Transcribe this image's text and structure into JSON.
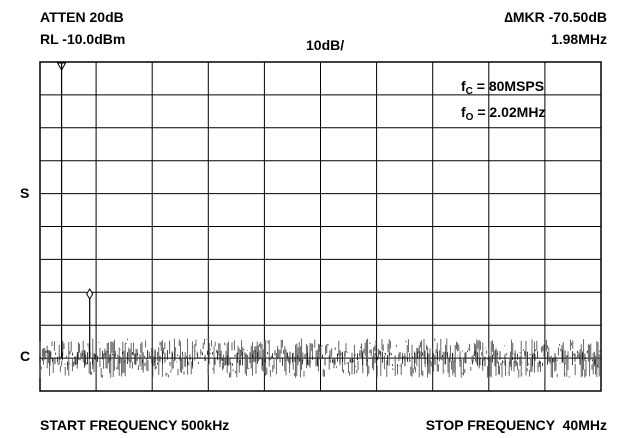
{
  "header": {
    "atten": "ATTEN 20dB",
    "rl": "RL -10.0dBm",
    "scale": "10dB/",
    "marker_prefix": "∆MKR",
    "marker_level": "-70.50dB",
    "marker_freq": "1.98MHz"
  },
  "annotations": {
    "fc_main": "f",
    "fc_sub": "C",
    "fc_value": " = 80MSPS",
    "fo_main": "f",
    "fo_sub": "O",
    "fo_value": " = 2.02MHz"
  },
  "side_labels": {
    "s": "S",
    "c": "C"
  },
  "footer": {
    "start": "START FREQUENCY 500kHz",
    "stop": "STOP FREQUENCY  40MHz"
  },
  "chart_data": {
    "type": "line",
    "title": "",
    "xlabel": "",
    "ylabel": "",
    "x_unit": "MHz",
    "x_range": [
      0.5,
      40
    ],
    "y_unit": "dB (relative to RL, 10dB/div)",
    "y_range": [
      -100,
      0
    ],
    "grid": true,
    "grid_divisions": {
      "x": 10,
      "y": 10
    },
    "series": [
      {
        "points": [
          {
            "x": 2.02,
            "y": 0
          },
          {
            "x": 4.0,
            "y": -70.5
          }
        ],
        "noise_floor": {
          "typical": -90,
          "range": [
            -95,
            -85
          ]
        }
      }
    ],
    "markers": [
      {
        "x": 2.02,
        "y": 0,
        "symbol": "triangle"
      },
      {
        "x": 4.0,
        "y": -70.5,
        "symbol": "diamond"
      }
    ]
  }
}
